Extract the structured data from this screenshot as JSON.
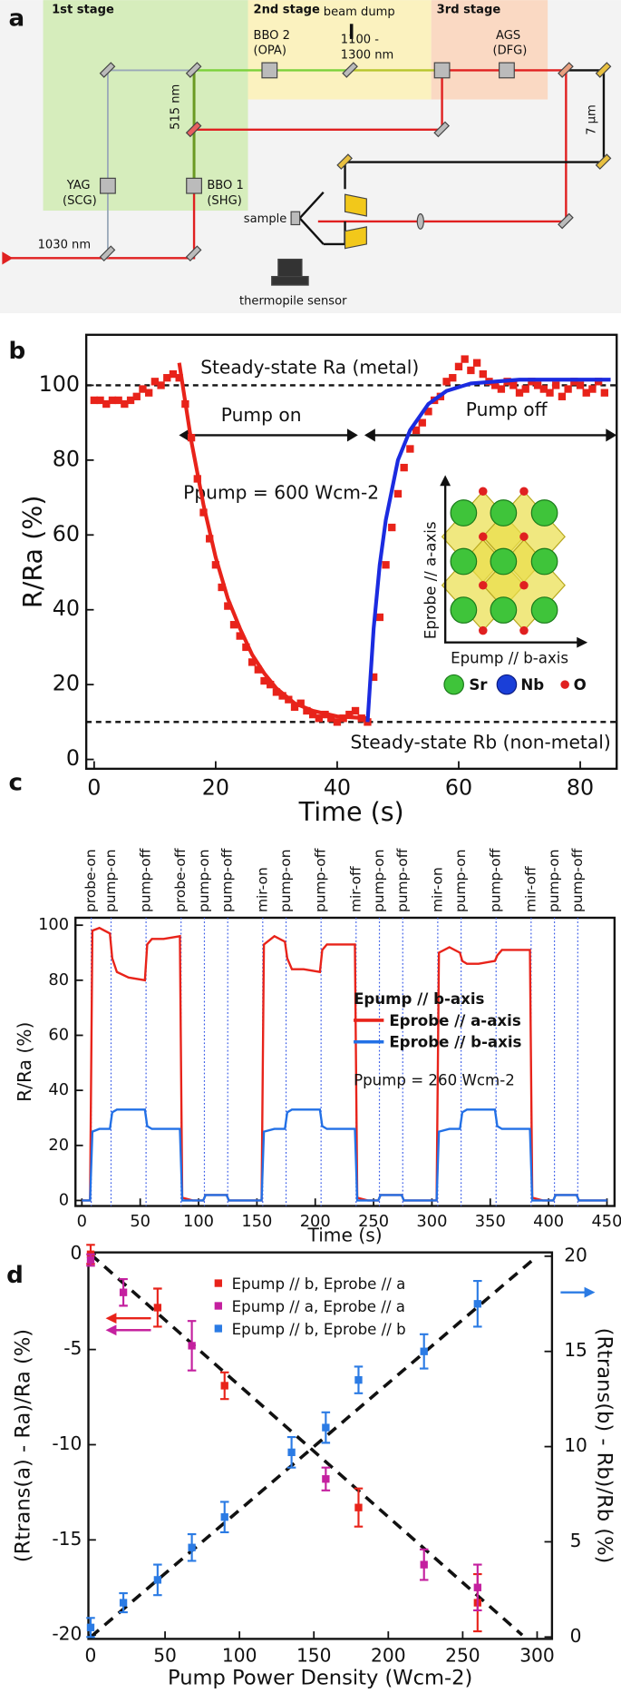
{
  "diagram": {
    "panel": "a",
    "labels": [
      "1st stage",
      "2nd stage",
      "beam dump",
      "3rd stage",
      "BBO 2",
      "(OPA)",
      "1100 -",
      "1300 nm",
      "AGS",
      "(DFG)",
      "515 nm",
      "7 µm",
      "YAG",
      "(SCG)",
      "BBO 1",
      "(SHG)",
      "sample",
      "1030 nm",
      "thermopile sensor"
    ]
  },
  "chart_data": [
    {
      "type": "scatter",
      "panel": "b",
      "x_label": "Time (s)",
      "y_label": "R/Ra (%)",
      "xlim": [
        -1.3,
        86
      ],
      "ylim": [
        -2.5,
        113.5
      ],
      "xticks": [
        0,
        20,
        40,
        60,
        80
      ],
      "yticks": [
        0,
        20,
        40,
        60,
        80,
        100
      ],
      "series": [
        {
          "color": "#e8231a",
          "x": [
            0,
            1,
            2,
            3,
            4,
            5,
            6,
            7,
            8,
            9,
            10,
            11,
            12,
            13,
            14,
            15,
            16,
            17,
            18,
            19,
            20,
            21,
            22,
            23,
            24,
            25,
            26,
            27,
            28,
            29,
            30,
            31,
            32,
            33,
            34,
            35,
            36,
            37,
            38,
            39,
            40,
            41,
            42,
            43,
            44,
            45,
            46,
            47,
            48,
            49,
            50,
            51,
            52,
            53,
            54,
            55,
            56,
            57,
            58,
            59,
            60,
            61,
            62,
            63,
            64,
            65,
            66,
            67,
            68,
            69,
            70,
            71,
            72,
            73,
            74,
            75,
            76,
            77,
            78,
            79,
            80,
            81,
            82,
            83,
            84
          ],
          "values": [
            96,
            96,
            95,
            96,
            96,
            95,
            96,
            97,
            99,
            98,
            101,
            100,
            102,
            103,
            102,
            95,
            86,
            75,
            66,
            59,
            52,
            46,
            41,
            36,
            33,
            30,
            26,
            24,
            21,
            20,
            18,
            17,
            16,
            14,
            15,
            13,
            12,
            11,
            12,
            11,
            10,
            11,
            12,
            13,
            11,
            10,
            22,
            38,
            52,
            62,
            71,
            78,
            83,
            88,
            90,
            93,
            96,
            97,
            101,
            102,
            105,
            107,
            104,
            106,
            103,
            101,
            100,
            99,
            101,
            100,
            98,
            99,
            101,
            100,
            99,
            98,
            100,
            97,
            99,
            101,
            100,
            98,
            99,
            101,
            98
          ]
        }
      ],
      "fits": [
        {
          "color": "#e8231a",
          "x": [
            14,
            16,
            18,
            20,
            22,
            24,
            26,
            28,
            30,
            33,
            36,
            40,
            45
          ],
          "values": [
            106,
            85,
            68,
            54,
            43,
            35,
            28,
            23,
            19,
            15,
            13,
            11.5,
            11
          ]
        },
        {
          "color": "#1b2be0",
          "x": [
            45,
            46,
            47,
            48,
            50,
            52,
            55,
            58,
            62,
            70,
            85
          ],
          "values": [
            10,
            35,
            52,
            64,
            80,
            88,
            95,
            98.5,
            100.5,
            101.5,
            101.5
          ]
        }
      ],
      "hlines": [
        100,
        10
      ],
      "annotations": [
        "Steady-state Ra (metal)",
        "Pump on",
        "Pump off",
        "Ppump = 600 Wcm-2",
        "Steady-state Rb (non-metal)",
        "Eprobe // a-axis",
        "Epump // b-axis",
        "Sr",
        "Nb",
        "O"
      ]
    },
    {
      "type": "line",
      "panel": "c",
      "x_label": "Time (s)",
      "y_label": "R/Ra (%)",
      "xlim": [
        -5.5,
        456.5
      ],
      "ylim": [
        -2,
        102.7
      ],
      "xticks": [
        0,
        50,
        100,
        150,
        200,
        250,
        300,
        350,
        400,
        450
      ],
      "yticks": [
        0,
        20,
        40,
        60,
        80,
        100
      ],
      "events": [
        8,
        25,
        55,
        85,
        105,
        125,
        155,
        175,
        205,
        235,
        255,
        275,
        305,
        325,
        355,
        385,
        405,
        425
      ],
      "event_labels": [
        "probe-on",
        "pump-on",
        "pump-off",
        "probe-off",
        "pump-on",
        "pump-off",
        "mir-on",
        "pump-on",
        "pump-off",
        "mir-off",
        "pump-on",
        "pump-off",
        "mir-on",
        "pump-on",
        "pump-off",
        "mir-off",
        "pump-on",
        "pump-off"
      ],
      "legend_title": "Epump // b-axis",
      "annotation": "Ppump = 260 Wcm-2",
      "series": [
        {
          "name": "Eprobe // a-axis",
          "color": "#e8231a",
          "x": [
            0,
            7,
            9,
            15,
            24,
            26,
            30,
            40,
            54,
            56,
            60,
            70,
            84,
            86,
            95,
            104,
            106,
            115,
            124,
            126,
            140,
            154,
            156,
            165,
            174,
            176,
            180,
            190,
            204,
            206,
            210,
            220,
            234,
            236,
            245,
            254,
            256,
            265,
            274,
            276,
            290,
            304,
            306,
            315,
            324,
            326,
            330,
            340,
            354,
            356,
            360,
            370,
            384,
            386,
            395,
            404,
            406,
            415,
            424,
            426,
            440,
            450
          ],
          "values": [
            0,
            0,
            98,
            99,
            97,
            88,
            83,
            81,
            80,
            93,
            95,
            95,
            96,
            1,
            0,
            0,
            2,
            2,
            2,
            0,
            0,
            0,
            93,
            96,
            94,
            88,
            84,
            84,
            83,
            91,
            93,
            93,
            93,
            1,
            0,
            0,
            2,
            2,
            2,
            0,
            0,
            0,
            90,
            92,
            90,
            87,
            86,
            86,
            87,
            89,
            91,
            91,
            91,
            1,
            0,
            0,
            2,
            2,
            2,
            0,
            0,
            0
          ]
        },
        {
          "name": "Eprobe // b-axis",
          "color": "#2270e6",
          "x": [
            0,
            7,
            9,
            15,
            24,
            26,
            30,
            40,
            54,
            56,
            60,
            70,
            84,
            86,
            95,
            104,
            106,
            115,
            124,
            126,
            140,
            154,
            156,
            165,
            174,
            176,
            180,
            190,
            204,
            206,
            210,
            220,
            234,
            236,
            245,
            254,
            256,
            265,
            274,
            276,
            290,
            304,
            306,
            315,
            324,
            326,
            330,
            340,
            354,
            356,
            360,
            370,
            384,
            386,
            395,
            404,
            406,
            415,
            424,
            426,
            440,
            450
          ],
          "values": [
            0,
            0,
            25,
            26,
            26,
            32,
            33,
            33,
            33,
            27,
            26,
            26,
            26,
            0,
            0,
            0,
            2,
            2,
            2,
            0,
            0,
            0,
            25,
            26,
            26,
            32,
            33,
            33,
            33,
            27,
            26,
            26,
            26,
            0,
            0,
            0,
            2,
            2,
            2,
            0,
            0,
            0,
            25,
            26,
            26,
            32,
            33,
            33,
            33,
            27,
            26,
            26,
            26,
            0,
            0,
            0,
            2,
            2,
            2,
            0,
            0,
            0
          ]
        }
      ]
    },
    {
      "type": "errorbar",
      "panel": "d",
      "x_label": "Pump Power Density (Wcm-2)",
      "y_label": "(Rtrans(a) - Ra)/Ra (%)",
      "y2_label": "(Rtrans(b) - Rb)/Rb (%)",
      "xlim": [
        -1.5,
        310
      ],
      "ylim": [
        -20.2,
        0.1
      ],
      "y2lim": [
        -0.1,
        20.2
      ],
      "xticks": [
        0,
        50,
        100,
        150,
        200,
        250,
        300
      ],
      "yticks": [
        0,
        -5,
        -10,
        -15,
        -20
      ],
      "y2ticks": [
        0,
        5,
        10,
        15,
        20
      ],
      "series": [
        {
          "name": "Epump // b, Eprobe // a",
          "color": "#e8231a",
          "axis": "y",
          "x": [
            0,
            45,
            90,
            180,
            260
          ],
          "values": [
            0,
            -2.8,
            -6.9,
            -13.3,
            -18.3
          ],
          "errors": [
            0.5,
            1,
            0.7,
            1,
            1.5
          ]
        },
        {
          "name": "Epump // a, Eprobe // a",
          "color": "#c4209f",
          "axis": "y",
          "x": [
            0,
            22,
            68,
            158,
            224,
            260
          ],
          "values": [
            -0.3,
            -2,
            -4.8,
            -11.8,
            -16.3,
            -17.5
          ],
          "errors": [
            0.3,
            0.7,
            1.3,
            0.6,
            0.8,
            1.2
          ]
        },
        {
          "name": "Epump // b, Eprobe // b",
          "color": "#2b7be4",
          "axis": "y2",
          "x": [
            0,
            22,
            45,
            68,
            90,
            135,
            158,
            180,
            224,
            260
          ],
          "values": [
            0.5,
            1.8,
            3,
            4.7,
            6.3,
            9.7,
            11,
            13.5,
            15,
            17.5
          ],
          "errors": [
            0.5,
            0.5,
            0.8,
            0.7,
            0.8,
            0.8,
            0.8,
            0.7,
            0.9,
            1.2
          ]
        }
      ],
      "fits": [
        {
          "x": [
            0,
            290
          ],
          "values": [
            0,
            -20
          ],
          "axis": "y"
        },
        {
          "x": [
            0,
            300
          ],
          "values": [
            0,
            20
          ],
          "axis": "y2"
        }
      ]
    }
  ]
}
